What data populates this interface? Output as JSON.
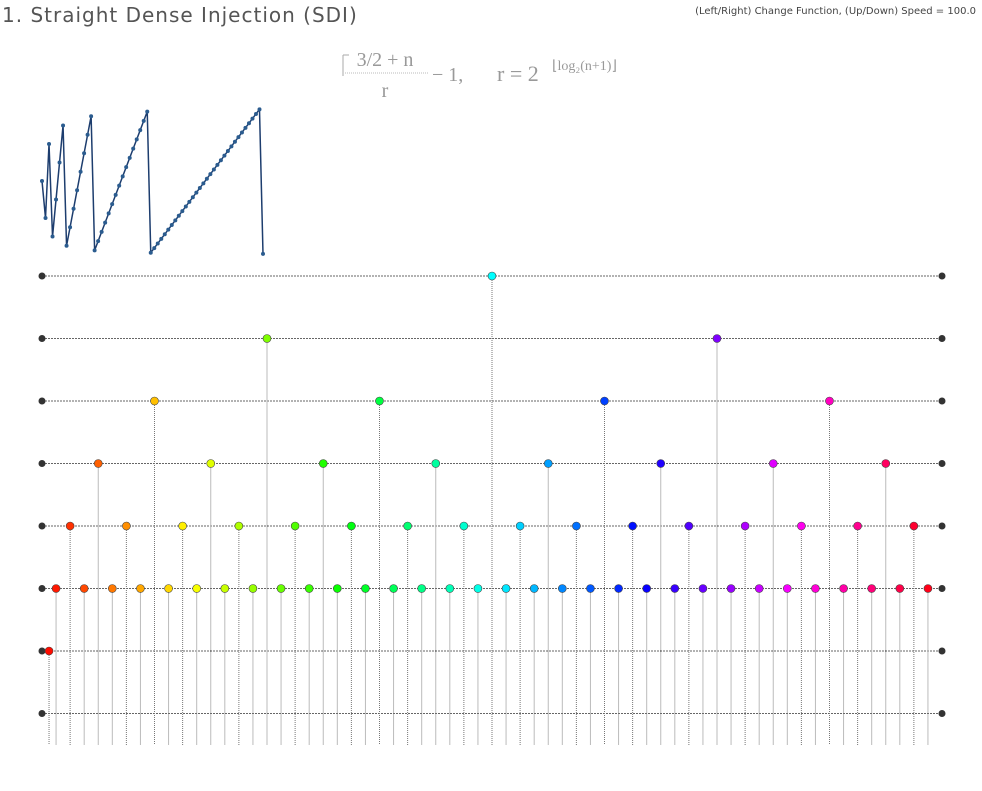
{
  "header": {
    "title": "1. Straight Dense Injection (SDI)",
    "hint": "(Left/Right) Change Function, (Up/Down) Speed = 100.0"
  },
  "formula": {
    "numerator": "3/2 + n",
    "denominator": "r",
    "tail": "− 1,",
    "r_def": "r = 2",
    "exponent": "⌊log₂(n+1)⌋"
  },
  "sequence": {
    "positions": [
      0.5,
      0.25,
      0.75,
      0.125,
      0.375,
      0.625,
      0.875,
      0.0625,
      0.1875,
      0.3125,
      0.4375,
      0.5625,
      0.6875,
      0.8125,
      0.9375,
      0.03125,
      0.09375,
      0.15625,
      0.21875,
      0.28125,
      0.34375,
      0.40625,
      0.46875,
      0.53125,
      0.59375,
      0.65625,
      0.71875,
      0.78125,
      0.84375,
      0.90625,
      0.96875,
      0.015625,
      0.046875,
      0.078125,
      0.109375,
      0.140625,
      0.171875,
      0.203125,
      0.234375,
      0.265625,
      0.296875,
      0.328125,
      0.359375,
      0.390625,
      0.421875,
      0.453125,
      0.484375,
      0.515625,
      0.546875,
      0.578125,
      0.609375,
      0.640625,
      0.671875,
      0.703125,
      0.734375,
      0.765625,
      0.796875,
      0.828125,
      0.859375,
      0.890625,
      0.921875,
      0.953125,
      0.984375,
      0.0078125
    ],
    "levels": [
      0,
      1,
      1,
      2,
      2,
      2,
      2,
      3,
      3,
      3,
      3,
      3,
      3,
      3,
      3,
      4,
      4,
      4,
      4,
      4,
      4,
      4,
      4,
      4,
      4,
      4,
      4,
      4,
      4,
      4,
      4,
      5,
      5,
      5,
      5,
      5,
      5,
      5,
      5,
      5,
      5,
      5,
      5,
      5,
      5,
      5,
      5,
      5,
      5,
      5,
      5,
      5,
      5,
      5,
      5,
      5,
      5,
      5,
      5,
      5,
      5,
      5,
      5,
      6
    ]
  }
}
